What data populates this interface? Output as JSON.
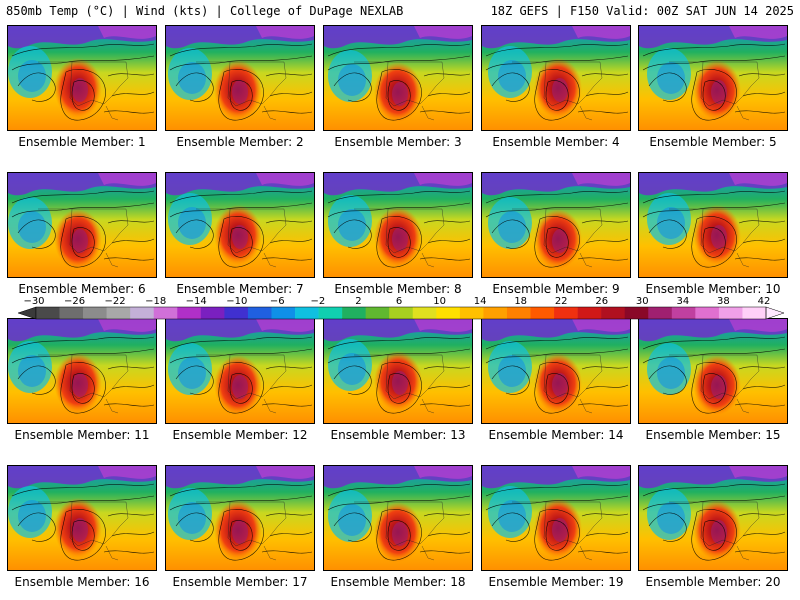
{
  "header": {
    "left": "850mb Temp (°C) | Wind (kts) | College of DuPage NEXLAB",
    "right": "18Z GEFS | F150 Valid: 00Z SAT JUN 14 2025"
  },
  "members": [
    {
      "label": "Ensemble Member: 1"
    },
    {
      "label": "Ensemble Member: 2"
    },
    {
      "label": "Ensemble Member: 3"
    },
    {
      "label": "Ensemble Member: 4"
    },
    {
      "label": "Ensemble Member: 5"
    },
    {
      "label": "Ensemble Member: 6"
    },
    {
      "label": "Ensemble Member: 7"
    },
    {
      "label": "Ensemble Member: 8"
    },
    {
      "label": "Ensemble Member: 9"
    },
    {
      "label": "Ensemble Member: 10"
    },
    {
      "label": "Ensemble Member: 11"
    },
    {
      "label": "Ensemble Member: 12"
    },
    {
      "label": "Ensemble Member: 13"
    },
    {
      "label": "Ensemble Member: 14"
    },
    {
      "label": "Ensemble Member: 15"
    },
    {
      "label": "Ensemble Member: 16"
    },
    {
      "label": "Ensemble Member: 17"
    },
    {
      "label": "Ensemble Member: 18"
    },
    {
      "label": "Ensemble Member: 19"
    },
    {
      "label": "Ensemble Member: 20"
    }
  ],
  "colorbar": {
    "labels": [
      "−30",
      "−26",
      "−22",
      "−18",
      "−14",
      "−10",
      "−6",
      "−2",
      "2",
      "6",
      "10",
      "14",
      "18",
      "22",
      "26",
      "30",
      "34",
      "38",
      "42"
    ],
    "colors": [
      "#4a4a4a",
      "#6e6e6e",
      "#8c8c8c",
      "#a8a8a8",
      "#c4b0d8",
      "#d070d8",
      "#b030c8",
      "#7a20c0",
      "#4030d0",
      "#2060e0",
      "#1090e8",
      "#10c0e0",
      "#10d0b0",
      "#20b060",
      "#60b830",
      "#a8d020",
      "#e0e020",
      "#ffe000",
      "#ffc000",
      "#ffa000",
      "#ff8000",
      "#ff5a00",
      "#f03010",
      "#d01818",
      "#b01020",
      "#8a0828",
      "#a02070",
      "#c040a0",
      "#e070d0",
      "#f0a0e8",
      "#ffd0f8"
    ]
  }
}
